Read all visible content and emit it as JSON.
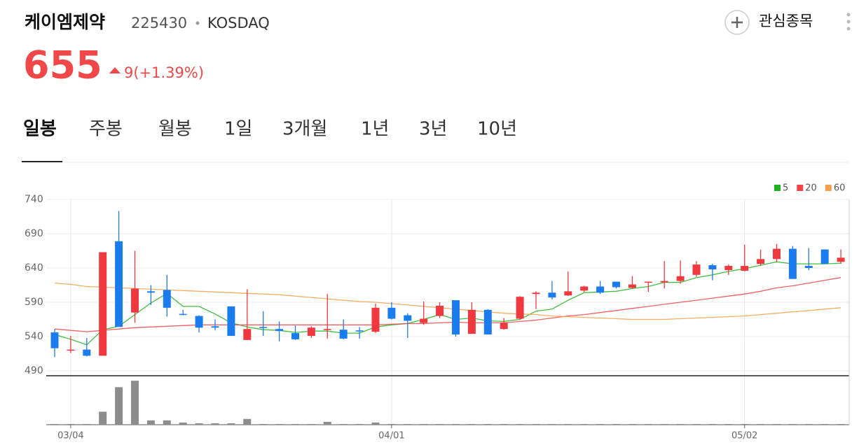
{
  "header": {
    "name": "케이엠제약",
    "code": "225430",
    "market": "KOSDAQ",
    "watch": "관심종목"
  },
  "quote": {
    "price": "655",
    "change": "9(+1.39%)"
  },
  "tabs": [
    "일봉",
    "주봉",
    "월봉",
    "1일",
    "3개월",
    "1년",
    "3년",
    "10년"
  ],
  "chart_data": {
    "type": "candlestick",
    "categories": [
      null,
      "03/04",
      null,
      null,
      null,
      null,
      null,
      null,
      null,
      null,
      null,
      null,
      null,
      null,
      null,
      null,
      null,
      null,
      null,
      null,
      null,
      "04/01",
      null,
      null,
      null,
      null,
      null,
      null,
      null,
      null,
      null,
      null,
      null,
      null,
      null,
      null,
      null,
      null,
      null,
      null,
      null,
      null,
      null,
      "05/02",
      null,
      null,
      null,
      null,
      null,
      null
    ],
    "open": [
      546,
      520,
      521,
      512,
      679,
      575,
      606,
      608,
      573,
      570,
      555,
      584,
      535,
      554,
      551,
      545,
      541,
      550,
      550,
      549,
      547,
      582,
      571,
      560,
      570,
      593,
      544,
      579,
      551,
      566,
      602,
      604,
      600,
      607,
      613,
      620,
      611,
      619,
      619,
      621,
      630,
      644,
      637,
      636,
      646,
      653,
      668,
      643,
      667,
      649
    ],
    "high": [
      551,
      541,
      538,
      663,
      723,
      665,
      615,
      630,
      579,
      571,
      565,
      584,
      609,
      577,
      562,
      556,
      555,
      602,
      565,
      554,
      588,
      590,
      574,
      591,
      590,
      593,
      590,
      580,
      567,
      599,
      606,
      621,
      635,
      614,
      621,
      620,
      628,
      620,
      650,
      651,
      650,
      646,
      645,
      674,
      667,
      675,
      672,
      669,
      667,
      667
    ],
    "low": [
      510,
      516,
      511,
      512,
      554,
      560,
      586,
      569,
      571,
      546,
      549,
      541,
      535,
      541,
      533,
      535,
      538,
      537,
      536,
      537,
      545,
      565,
      538,
      557,
      567,
      540,
      544,
      543,
      550,
      565,
      580,
      594,
      599,
      605,
      602,
      610,
      610,
      605,
      610,
      617,
      627,
      622,
      630,
      635,
      643,
      649,
      624,
      637,
      646,
      646
    ],
    "close": [
      523,
      521,
      512,
      663,
      554,
      610,
      604,
      582,
      572,
      553,
      553,
      541,
      551,
      553,
      548,
      536,
      553,
      551,
      537,
      548,
      582,
      566,
      563,
      566,
      585,
      543,
      579,
      543,
      560,
      598,
      604,
      597,
      606,
      613,
      604,
      612,
      616,
      620,
      621,
      628,
      645,
      638,
      643,
      643,
      653,
      668,
      624,
      640,
      646,
      655
    ],
    "volume": [
      1,
      1,
      1,
      18,
      52,
      61,
      6,
      6,
      3,
      2,
      2,
      2,
      8,
      1,
      1,
      1,
      1,
      4,
      1,
      1,
      3,
      1,
      1,
      1,
      1,
      1,
      1,
      1,
      1,
      1,
      1,
      1,
      1,
      1,
      1,
      1,
      1,
      1,
      1,
      1,
      1,
      1,
      1,
      1,
      1,
      1,
      1,
      1,
      1,
      1
    ],
    "vlim": [
      0,
      65
    ],
    "series": [
      {
        "name": "5",
        "color": "#1fb31f",
        "values": [
          543,
          536,
          528,
          550,
          555,
          572,
          589,
          603,
          584,
          584,
          573,
          560,
          554,
          550,
          549,
          546,
          548,
          548,
          545,
          545,
          554,
          557,
          559,
          565,
          572,
          565,
          567,
          563,
          562,
          565,
          577,
          580,
          593,
          604,
          605,
          606,
          610,
          613,
          619,
          619,
          626,
          630,
          635,
          639,
          644,
          649,
          646,
          646,
          646,
          647
        ]
      },
      {
        "name": "20",
        "color": "#f0444a",
        "values": [
          551,
          549,
          547,
          549,
          551,
          553,
          554,
          555,
          556,
          557,
          557,
          557,
          557,
          557,
          557,
          557,
          557,
          557,
          557,
          557,
          557,
          558,
          559,
          559,
          560,
          561,
          560,
          560,
          560,
          562,
          564,
          567,
          570,
          572,
          575,
          578,
          581,
          584,
          587,
          590,
          593,
          596,
          599,
          602,
          606,
          611,
          614,
          618,
          622,
          626
        ]
      },
      {
        "name": "60",
        "color": "#f5a04a",
        "values": [
          618,
          616,
          613,
          612,
          611,
          610,
          609,
          608,
          607,
          606,
          605,
          604,
          603,
          602,
          601,
          599,
          597,
          595,
          593,
          591,
          590,
          588,
          586,
          584,
          582,
          580,
          578,
          576,
          574,
          573,
          572,
          570,
          569,
          568,
          567,
          566,
          565,
          565,
          565,
          566,
          567,
          568,
          569,
          570,
          572,
          574,
          576,
          578,
          580,
          582
        ]
      }
    ],
    "up_color": "#f0393e",
    "down_color": "#1b7cee",
    "volume_color": "#8c8c8c",
    "ylim": [
      490,
      740
    ],
    "yticks": [
      490,
      540,
      590,
      640,
      690,
      740
    ],
    "grid": true
  }
}
